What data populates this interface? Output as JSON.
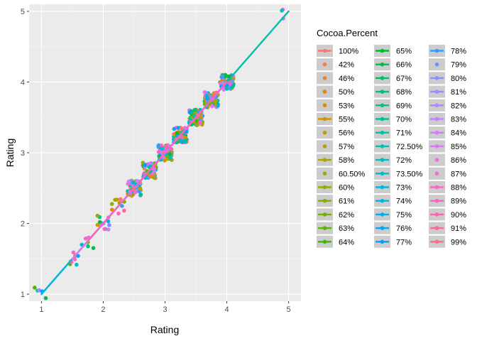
{
  "chart_data": {
    "type": "scatter",
    "title": "",
    "xlabel": "Rating",
    "ylabel": "Rating",
    "xlim": [
      0.8,
      5.2
    ],
    "ylim": [
      0.9,
      5.1
    ],
    "x_ticks": [
      1,
      2,
      3,
      4,
      5
    ],
    "y_ticks": [
      1,
      2,
      3,
      4,
      5
    ],
    "x_tick_labels": [
      "1",
      "2",
      "3",
      "4",
      "5"
    ],
    "y_tick_labels": [
      "1",
      "2",
      "3",
      "4",
      "5"
    ],
    "grid": true,
    "jitter": true,
    "rating_levels": [
      1,
      1.5,
      1.75,
      2,
      2.25,
      2.5,
      2.75,
      3,
      3.25,
      3.5,
      3.75,
      4,
      5
    ],
    "legend": {
      "title": "Cocoa.Percent",
      "placement": "right",
      "entries": [
        {
          "label": "100%",
          "color": "#F8766D",
          "line": true
        },
        {
          "label": "42%",
          "color": "#F27D52",
          "line": false
        },
        {
          "label": "46%",
          "color": "#EA8331",
          "line": false
        },
        {
          "label": "50%",
          "color": "#E18A00",
          "line": false
        },
        {
          "label": "53%",
          "color": "#D89000",
          "line": false
        },
        {
          "label": "55%",
          "color": "#CE9500",
          "line": true
        },
        {
          "label": "56%",
          "color": "#C49A00",
          "line": false
        },
        {
          "label": "57%",
          "color": "#B9A000",
          "line": false
        },
        {
          "label": "58%",
          "color": "#ADA400",
          "line": true
        },
        {
          "label": "60.50%",
          "color": "#A0A800",
          "line": false
        },
        {
          "label": "60%",
          "color": "#92AC00",
          "line": true
        },
        {
          "label": "61%",
          "color": "#83AF00",
          "line": true
        },
        {
          "label": "62%",
          "color": "#70B300",
          "line": true
        },
        {
          "label": "63%",
          "color": "#5BB600",
          "line": true
        },
        {
          "label": "64%",
          "color": "#3CB900",
          "line": true
        },
        {
          "label": "65%",
          "color": "#00BB2E",
          "line": true
        },
        {
          "label": "66%",
          "color": "#00BD4C",
          "line": true
        },
        {
          "label": "67%",
          "color": "#00BF62",
          "line": true
        },
        {
          "label": "68%",
          "color": "#00C075",
          "line": true
        },
        {
          "label": "69%",
          "color": "#00C087",
          "line": true
        },
        {
          "label": "70%",
          "color": "#00C097",
          "line": true
        },
        {
          "label": "71%",
          "color": "#00C0A7",
          "line": true
        },
        {
          "label": "72.50%",
          "color": "#00BFB6",
          "line": true
        },
        {
          "label": "72%",
          "color": "#00BDC3",
          "line": true
        },
        {
          "label": "73.50%",
          "color": "#00BBD0",
          "line": true
        },
        {
          "label": "73%",
          "color": "#00B7DC",
          "line": true
        },
        {
          "label": "74%",
          "color": "#00B3E7",
          "line": true
        },
        {
          "label": "75%",
          "color": "#00AEF1",
          "line": true
        },
        {
          "label": "76%",
          "color": "#00A8F9",
          "line": true
        },
        {
          "label": "77%",
          "color": "#00A2FF",
          "line": true
        },
        {
          "label": "78%",
          "color": "#3A9BFF",
          "line": true
        },
        {
          "label": "79%",
          "color": "#6F94FF",
          "line": false
        },
        {
          "label": "80%",
          "color": "#8D8EFF",
          "line": true
        },
        {
          "label": "81%",
          "color": "#A389FF",
          "line": true
        },
        {
          "label": "82%",
          "color": "#B584FF",
          "line": true
        },
        {
          "label": "83%",
          "color": "#C57FFF",
          "line": true
        },
        {
          "label": "84%",
          "color": "#D47AFF",
          "line": true
        },
        {
          "label": "85%",
          "color": "#E074F7",
          "line": true
        },
        {
          "label": "86%",
          "color": "#EA6EEB",
          "line": false
        },
        {
          "label": "87%",
          "color": "#F16BDF",
          "line": false
        },
        {
          "label": "88%",
          "color": "#F767CF",
          "line": true
        },
        {
          "label": "89%",
          "color": "#FB64BE",
          "line": true
        },
        {
          "label": "90%",
          "color": "#FE63AD",
          "line": true
        },
        {
          "label": "91%",
          "color": "#FF6799",
          "line": true
        },
        {
          "label": "99%",
          "color": "#FF6C86",
          "line": true
        }
      ]
    },
    "fit_lines": [
      {
        "color": "#00C0A7",
        "x": [
          1,
          5
        ],
        "y": [
          1,
          5
        ]
      },
      {
        "color": "#00B7DC",
        "x": [
          1,
          4
        ],
        "y": [
          1,
          4
        ]
      },
      {
        "color": "#E074F7",
        "x": [
          1.5,
          4
        ],
        "y": [
          1.5,
          4
        ]
      },
      {
        "color": "#FB64BE",
        "x": [
          1.75,
          4
        ],
        "y": [
          1.75,
          4
        ]
      }
    ],
    "colors": {
      "panel_background": "#EBEBEB",
      "grid_major": "#FFFFFF",
      "grid_minor": "#F5F5F5"
    }
  }
}
